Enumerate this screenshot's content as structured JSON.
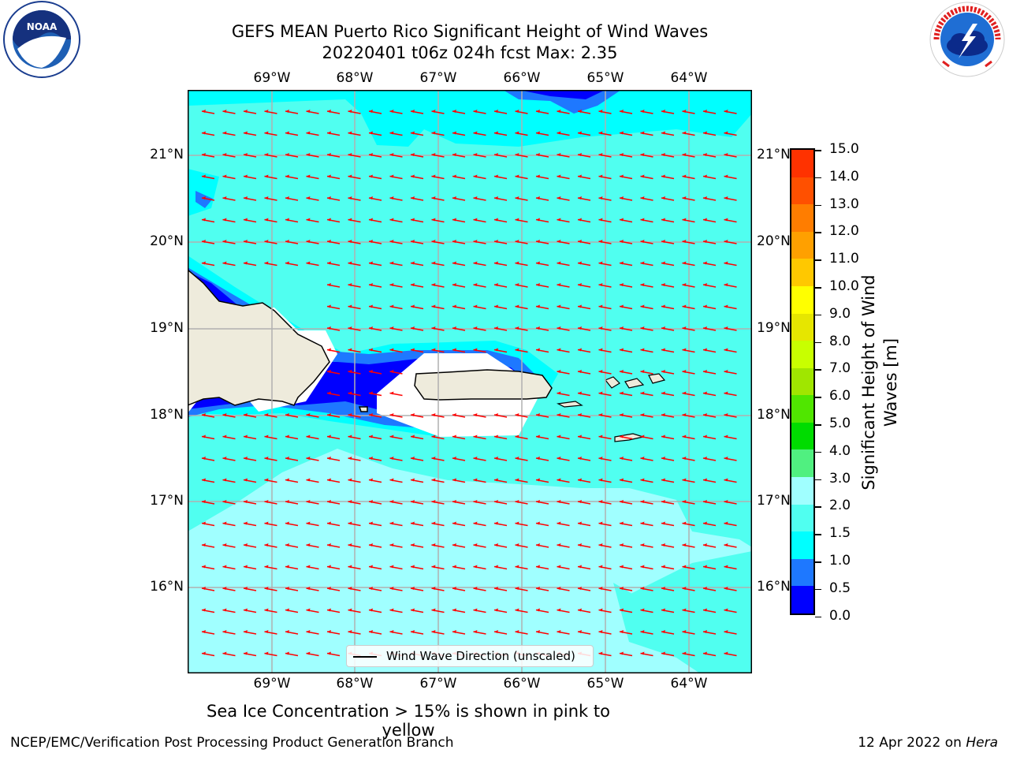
{
  "title": {
    "line1": "GEFS MEAN Puerto Rico Significant Height of Wind Waves",
    "line2": "20220401 t06z 024h fcst   Max: 2.35"
  },
  "map": {
    "lon_labels": [
      "69°W",
      "68°W",
      "67°W",
      "66°W",
      "65°W",
      "64°W"
    ],
    "lat_labels": [
      "21°N",
      "20°N",
      "19°N",
      "18°N",
      "17°N",
      "16°N"
    ],
    "legend_label": "Wind Wave Direction (unscaled)",
    "arrow_color": "#ff0000",
    "land_color": "#eeebdc"
  },
  "colorbar": {
    "label": "Significant Height of Wind Waves [m]",
    "ticks": [
      "15.0",
      "14.0",
      "13.0",
      "12.0",
      "11.0",
      "10.0",
      "9.0",
      "8.0",
      "7.0",
      "6.0",
      "5.0",
      "4.0",
      "3.0",
      "2.0",
      "1.5",
      "1.0",
      "0.5",
      "0.0"
    ],
    "colors": [
      "#0000ff",
      "#1e78ff",
      "#00ffff",
      "#50fff0",
      "#a0ffff",
      "#50f080",
      "#00dc00",
      "#50e600",
      "#a0e600",
      "#c8ff00",
      "#e6e600",
      "#ffff00",
      "#ffc800",
      "#ffa000",
      "#ff7d00",
      "#ff5000",
      "#ff3200",
      "#ff0000"
    ]
  },
  "sea_ice_note": "Sea Ice Concentration > 15% is shown in pink to yellow",
  "footer": {
    "left": "NCEP/EMC/Verification Post Processing Product Generation Branch",
    "right_prefix": "12 Apr 2022 on ",
    "right_host": "Hera"
  },
  "logos": {
    "left": "NOAA",
    "right": "NATIONAL WEATHER SERVICE"
  }
}
